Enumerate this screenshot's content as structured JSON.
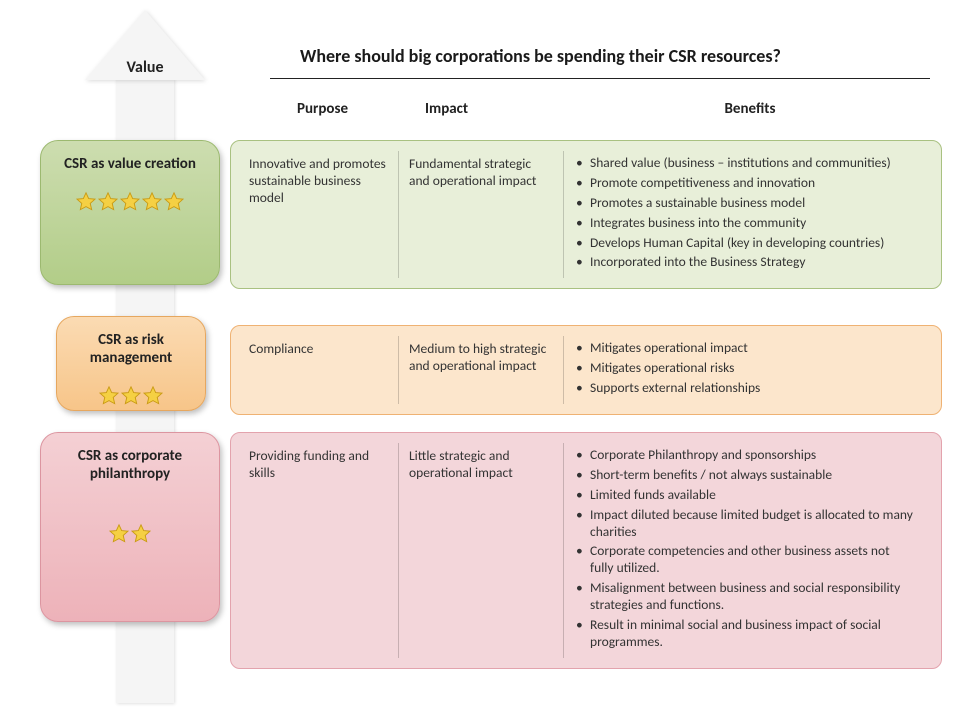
{
  "type": "infographic-table",
  "title": "Where should big corporations be spending their CSR resources?",
  "arrow_label": "Value",
  "columns": [
    "Purpose",
    "Impact",
    "Benefits"
  ],
  "background_color": "#ffffff",
  "arrow_color": "#f5f5f5",
  "star_fill": "#f5d043",
  "star_stroke": "#c99a12",
  "tiers": [
    {
      "title": "CSR as value creation",
      "stars": 5,
      "card_gradient": [
        "#cdddb0",
        "#b2cd88"
      ],
      "card_border": "#9cb970",
      "box_bg": "#e8efd9",
      "box_border": "#a9c181",
      "purpose": "Innovative and promotes sustainable business model",
      "impact": "Fundamental strategic and operational impact",
      "benefits": [
        "Shared value (business – institutions and communities)",
        "Promote competitiveness and innovation",
        "Promotes a sustainable business model",
        "Integrates business into the community",
        "Develops Human Capital (key in developing countries)",
        "Incorporated into the Business Strategy"
      ]
    },
    {
      "title": "CSR as risk management",
      "stars": 3,
      "card_gradient": [
        "#fbdbb3",
        "#f7c589"
      ],
      "card_border": "#e6a75f",
      "box_bg": "#fce6cc",
      "box_border": "#efb273",
      "purpose": "Compliance",
      "impact": "Medium to high strategic and operational impact",
      "benefits": [
        "Mitigates operational impact",
        "Mitigates operational risks",
        "Supports external relationships"
      ]
    },
    {
      "title": "CSR as corporate philanthropy",
      "stars": 2,
      "card_gradient": [
        "#f4d0d4",
        "#edb2b9"
      ],
      "card_border": "#dc95a0",
      "box_bg": "#f3d6da",
      "box_border": "#e3a3ad",
      "purpose": "Providing funding and skills",
      "impact": "Little strategic and operational impact",
      "benefits": [
        "Corporate Philanthropy and sponsorships",
        "Short-term benefits / not always sustainable",
        "Limited funds available",
        "Impact diluted because limited budget is allocated to many charities",
        "Corporate competencies and other business assets not fully utilized.",
        "Misalignment between business and social responsibility strategies and functions.",
        "Result in minimal social and business impact of social programmes."
      ]
    }
  ]
}
